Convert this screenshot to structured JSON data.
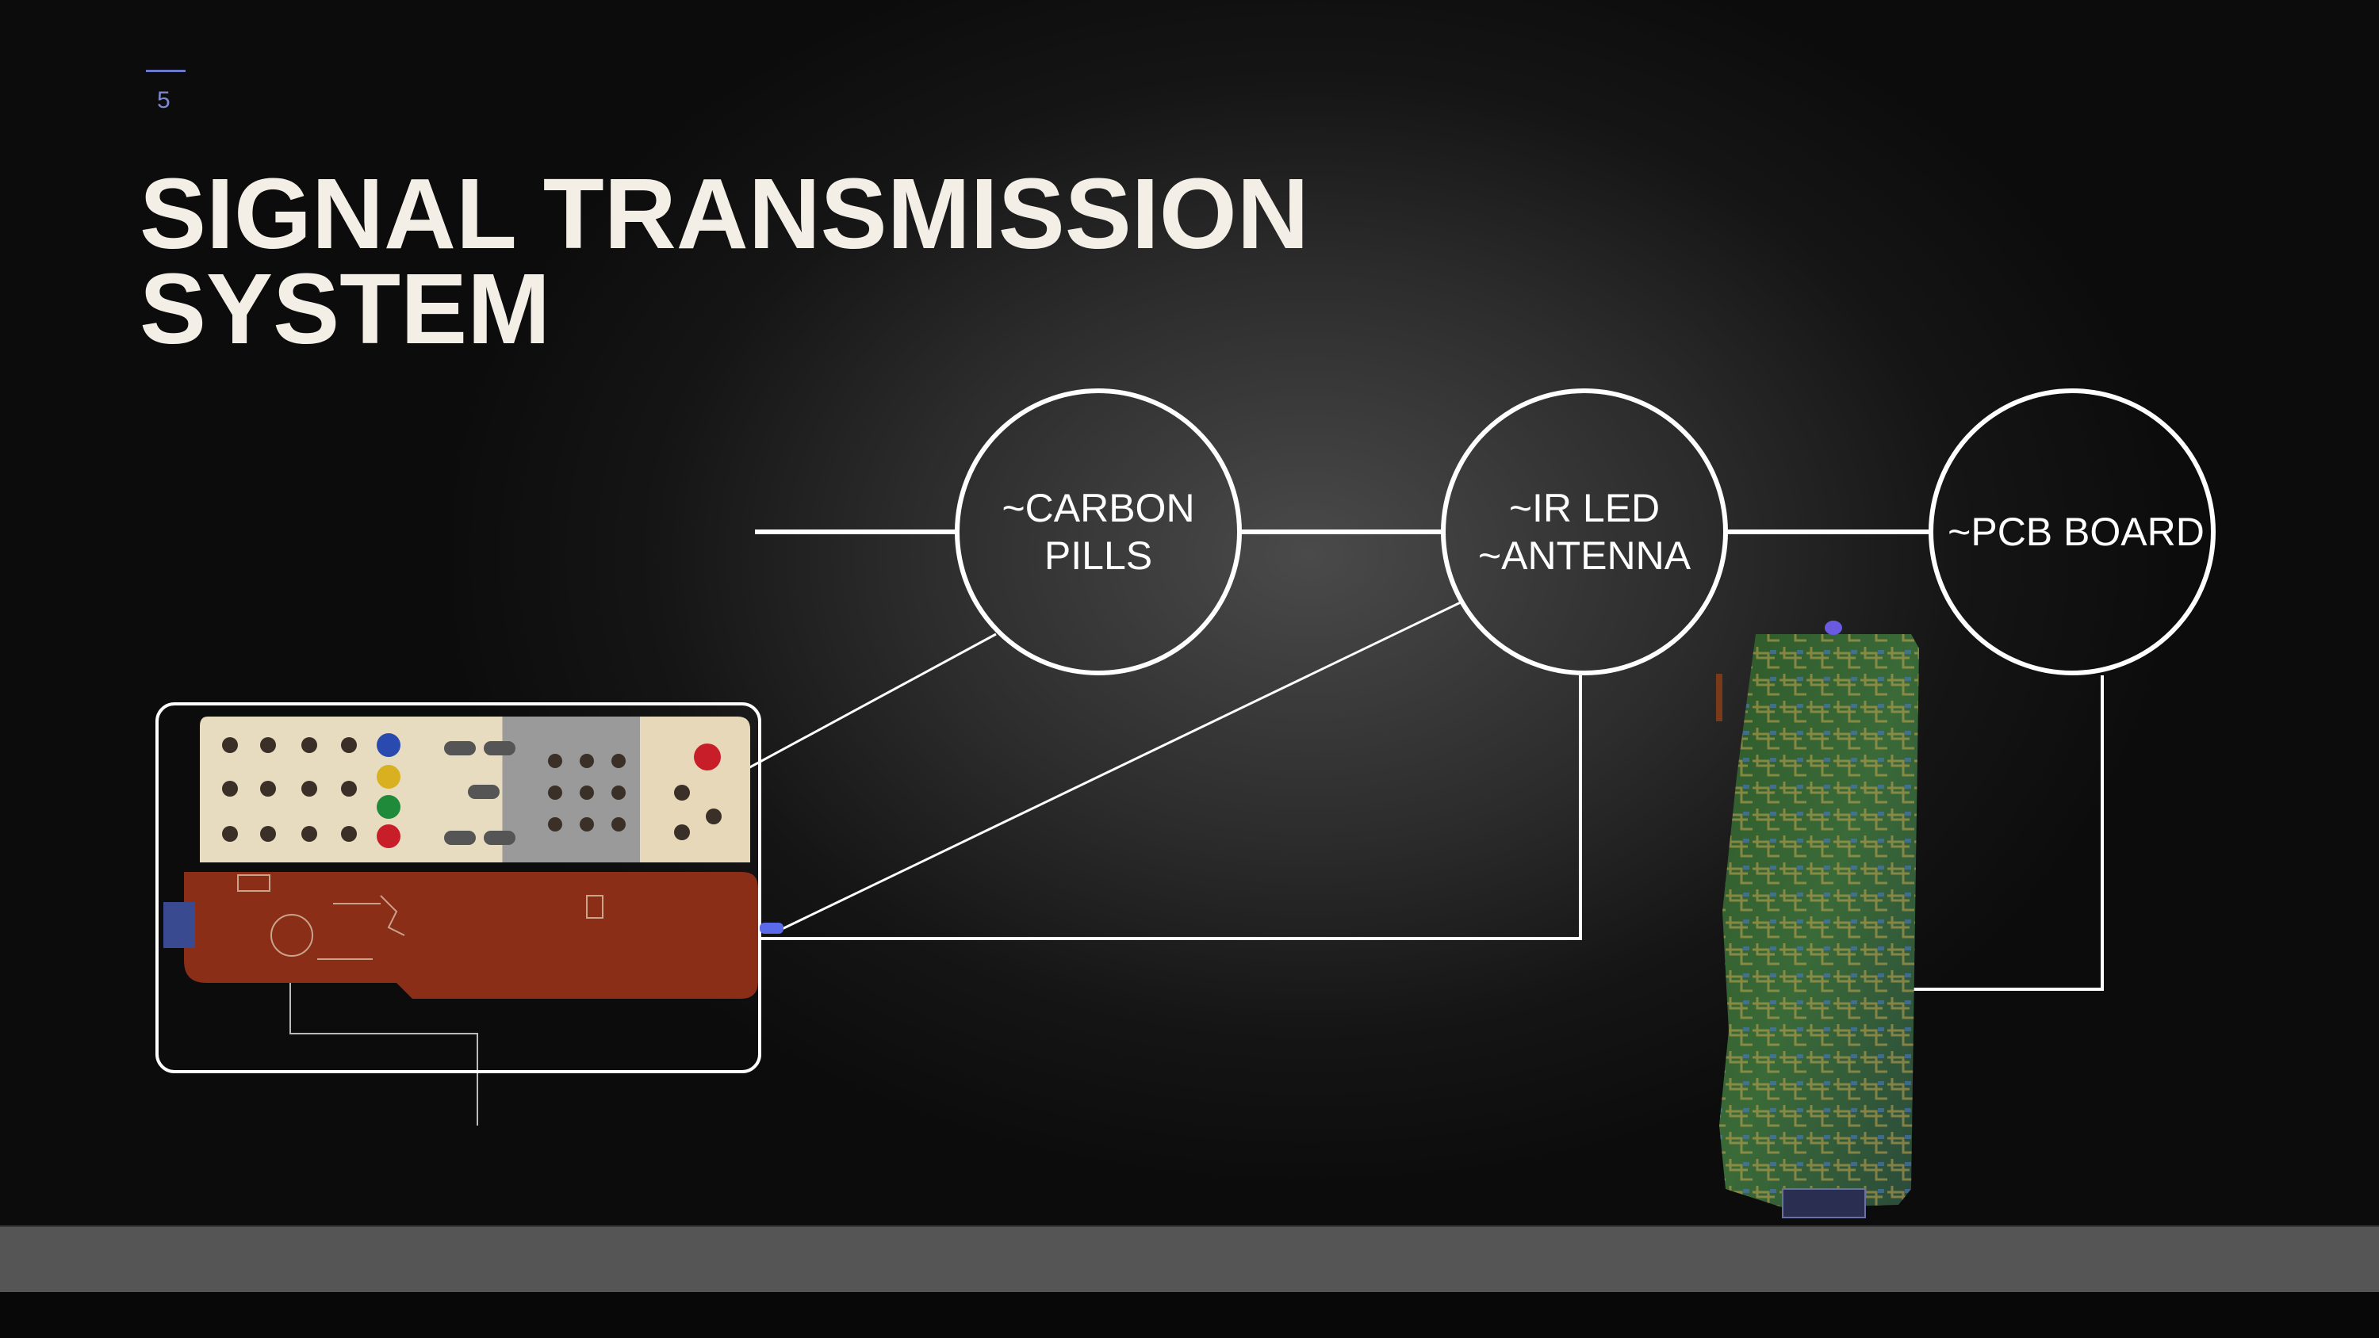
{
  "slide": {
    "number": "5"
  },
  "title": {
    "line1": "SIGNAL TRANSMISSION",
    "line2": "SYSTEM"
  },
  "nodes": [
    {
      "id": "carbon",
      "line1": "~CARBON",
      "line2": "PILLS"
    },
    {
      "id": "irled",
      "line1": "~IR LED",
      "line2": "~ANTENNA"
    },
    {
      "id": "pcb",
      "line1": "~PCB BOARD",
      "line2": ""
    }
  ],
  "colors": {
    "background": "#0c0c0c",
    "title": "#f4efe6",
    "accent": "#6b78c8",
    "stroke": "#ffffff"
  }
}
